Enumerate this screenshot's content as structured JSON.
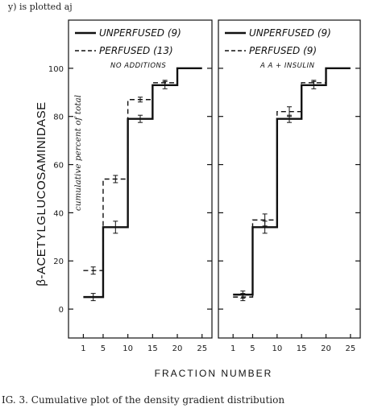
{
  "page": {
    "top_text": "y) is plotted aj",
    "caption": "IG. 3. Cumulative plot of the density gradient distribution"
  },
  "chart_data": {
    "type": "line",
    "shared_ylabel": "β-ACETYLGLUCOSAMINIDASE",
    "shared_xlabel": "FRACTION  NUMBER",
    "y_annotation": "cumulative percent of total",
    "ylim": [
      -12,
      120
    ],
    "yticks": [
      0,
      20,
      40,
      60,
      80,
      100
    ],
    "xlim": [
      -2,
      27
    ],
    "xticks": [
      1,
      5,
      10,
      15,
      20,
      25
    ],
    "panels": [
      {
        "name": "left",
        "series": [
          {
            "name": "UNPERFUSED (9)",
            "style": "solid",
            "x": [
              1,
              5,
              10,
              15,
              20,
              25
            ],
            "y": [
              5,
              34,
              79,
              93,
              100,
              100
            ],
            "err": [
              1.5,
              2.5,
              1.5,
              1.5,
              0,
              0
            ]
          },
          {
            "name": "PERFUSED (13)",
            "style": "dashed",
            "subtitle": "NO ADDITIONS",
            "x": [
              1,
              5,
              10,
              15,
              20,
              25
            ],
            "y": [
              16,
              54,
              87,
              94,
              100,
              100
            ],
            "err": [
              1.5,
              1.5,
              1,
              1,
              0,
              0
            ]
          }
        ]
      },
      {
        "name": "right",
        "series": [
          {
            "name": "UNPERFUSED (9)",
            "style": "solid",
            "x": [
              1,
              5,
              10,
              15,
              20,
              25
            ],
            "y": [
              6,
              34,
              79,
              93,
              100,
              100
            ],
            "err": [
              1.5,
              2.5,
              1.5,
              1.5,
              0,
              0
            ]
          },
          {
            "name": "PERFUSED (9)",
            "style": "dashed",
            "subtitle": "A A + INSULIN",
            "x": [
              1,
              5,
              10,
              15,
              20,
              25
            ],
            "y": [
              5,
              37,
              82,
              94,
              100,
              100
            ],
            "err": [
              1.5,
              2.5,
              2,
              1,
              0,
              0
            ]
          }
        ]
      }
    ]
  }
}
